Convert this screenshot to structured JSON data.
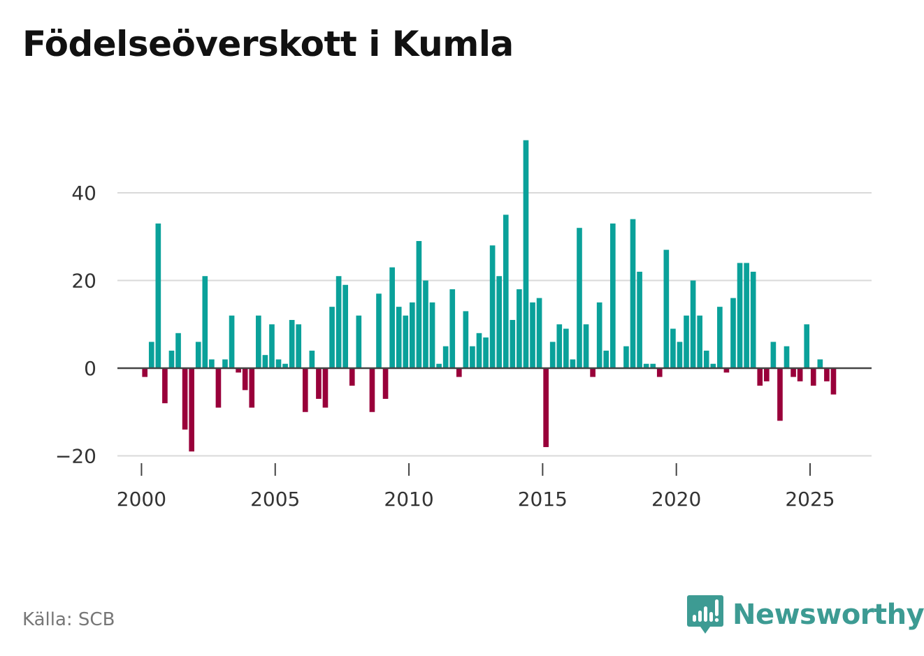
{
  "title": "Födelseöverskott i Kumla",
  "source": "Källa: SCB",
  "brand": {
    "name": "Newsworthy",
    "color": "#3d9b93",
    "icon": "newsworthy-logo-icon"
  },
  "colors": {
    "positive": "#0aa19a",
    "negative": "#99003a",
    "grid": "#d9d9d9",
    "zero": "#444444",
    "text": "#333333"
  },
  "chart_data": {
    "type": "bar",
    "title": "Födelseöverskott i Kumla",
    "xlabel": "",
    "ylabel": "",
    "ylim": [
      -22,
      54
    ],
    "xlim": [
      1999.1,
      2027.3
    ],
    "yticks": [
      -20,
      0,
      20,
      40
    ],
    "ytick_labels": [
      "−20",
      "0",
      "20",
      "40"
    ],
    "xticks": [
      2000,
      2005,
      2010,
      2015,
      2020,
      2025
    ],
    "xtick_labels": [
      "2000",
      "2005",
      "2010",
      "2015",
      "2020",
      "2025"
    ],
    "grid": true,
    "x_start": 2000.125,
    "x_step": 0.25,
    "values": [
      -2,
      6,
      33,
      -8,
      4,
      8,
      -14,
      -19,
      6,
      21,
      2,
      -9,
      2,
      12,
      -1,
      -5,
      -9,
      12,
      3,
      10,
      2,
      1,
      11,
      10,
      -10,
      4,
      -7,
      -9,
      14,
      21,
      19,
      -4,
      12,
      0,
      -10,
      17,
      -7,
      23,
      14,
      12,
      15,
      29,
      20,
      15,
      1,
      5,
      18,
      -2,
      13,
      5,
      8,
      7,
      28,
      21,
      35,
      11,
      18,
      52,
      15,
      16,
      -18,
      6,
      10,
      9,
      2,
      32,
      10,
      -2,
      15,
      4,
      33,
      0,
      5,
      34,
      22,
      1,
      1,
      -2,
      27,
      9,
      6,
      12,
      20,
      12,
      4,
      1,
      14,
      -1,
      16,
      24,
      24,
      22,
      -4,
      -3,
      6,
      -12,
      5,
      -2,
      -3,
      10,
      -4,
      2,
      -3,
      -6
    ]
  }
}
